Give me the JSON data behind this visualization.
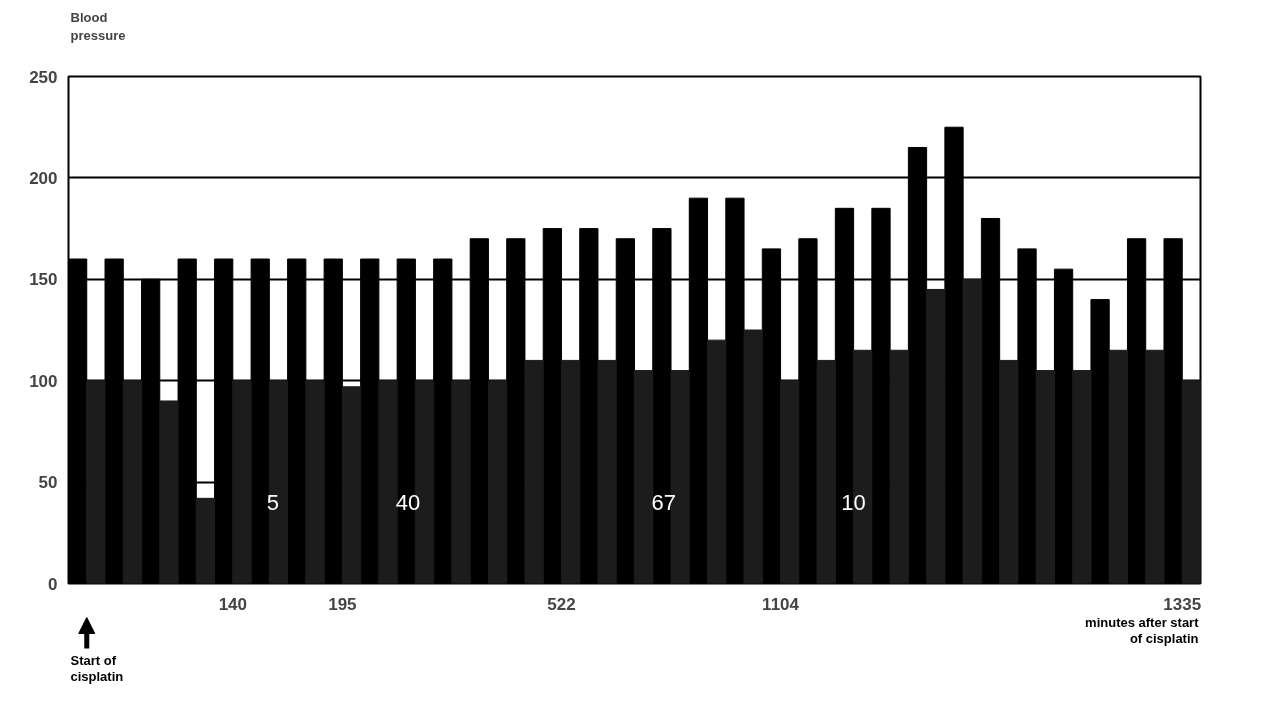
{
  "chart_data": {
    "type": "bar",
    "ylabel": "Blood pressure",
    "xlabel": "minutes after start of cisplatin",
    "categories": [
      null,
      null,
      null,
      null,
      "140",
      null,
      null,
      "195",
      null,
      null,
      null,
      null,
      null,
      "522",
      null,
      null,
      null,
      null,
      null,
      "1104",
      null,
      null,
      null,
      null,
      null,
      null,
      null,
      null,
      null,
      null,
      "1335"
    ],
    "series": [
      {
        "color": "#000000",
        "values": [
          160,
          160,
          150,
          160,
          160,
          160,
          160,
          160,
          160,
          160,
          160,
          170,
          170,
          175,
          175,
          170,
          175,
          190,
          190,
          165,
          170,
          185,
          185,
          215,
          225,
          180,
          165,
          155,
          140,
          170,
          170
        ]
      },
      {
        "color": "#1c1c1c",
        "values": [
          100,
          100,
          90,
          42,
          100,
          100,
          100,
          97,
          100,
          100,
          100,
          100,
          110,
          110,
          110,
          105,
          105,
          120,
          125,
          100,
          110,
          115,
          115,
          145,
          150,
          110,
          105,
          105,
          115,
          115,
          100
        ]
      }
    ],
    "ylim": [
      0,
      250
    ],
    "yticks": [
      0,
      50,
      100,
      150,
      200,
      250
    ],
    "grid": "y",
    "annotations": [
      "Start of cisplatin",
      "5",
      "40",
      "67",
      "10"
    ]
  }
}
